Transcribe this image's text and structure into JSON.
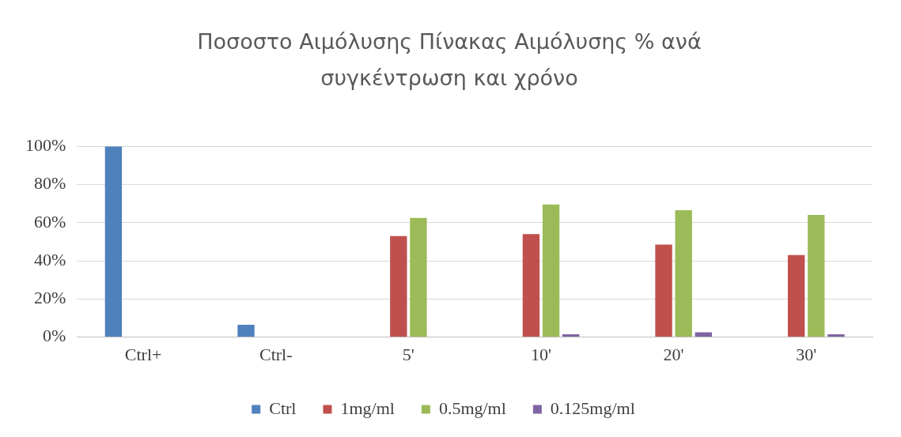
{
  "chart_data": {
    "type": "bar",
    "title": "Ποσοστο Αιμόλυσης Πίνακας Αιμόλυσης % ανά συγκέντρωση και χρόνο",
    "categories": [
      "Ctrl+",
      "Ctrl-",
      "5'",
      "10'",
      "20'",
      "30'"
    ],
    "series": [
      {
        "name": "Ctrl",
        "color": "#4f81bd",
        "values": [
          100,
          6.5,
          null,
          null,
          null,
          null
        ]
      },
      {
        "name": "1mg/ml",
        "color": "#c0504d",
        "values": [
          null,
          null,
          53,
          54,
          48.5,
          43
        ]
      },
      {
        "name": "0.5mg/ml",
        "color": "#9bbb59",
        "values": [
          null,
          null,
          62.5,
          69.5,
          66.5,
          64
        ]
      },
      {
        "name": "0.125mg/ml",
        "color": "#8064a2",
        "values": [
          null,
          null,
          null,
          1.5,
          2.5,
          1.5
        ]
      }
    ],
    "ylim": [
      0,
      100
    ],
    "yticks": [
      {
        "value": 0,
        "label": "0%"
      },
      {
        "value": 20,
        "label": "20%"
      },
      {
        "value": 40,
        "label": "40%"
      },
      {
        "value": 60,
        "label": "60%"
      },
      {
        "value": 80,
        "label": "80%"
      },
      {
        "value": 100,
        "label": "100%"
      }
    ],
    "grid": "y",
    "legend": "bottom"
  }
}
